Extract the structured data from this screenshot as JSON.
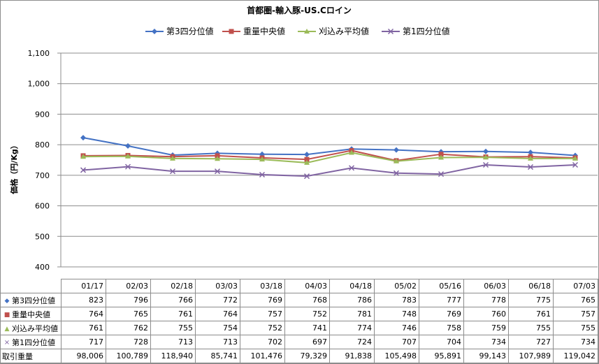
{
  "chart_data": {
    "type": "line",
    "title": "首都圏-輸入豚-US.Cロイン",
    "ylabel": "価格（円/Kg）",
    "xlabel": "",
    "ylim": [
      400,
      1100
    ],
    "yticks": [
      "400",
      "500",
      "600",
      "700",
      "800",
      "900",
      "1,000",
      "1,100"
    ],
    "categories": [
      "01/17",
      "02/03",
      "02/18",
      "03/03",
      "03/18",
      "04/03",
      "04/18",
      "05/02",
      "05/16",
      "06/03",
      "06/18",
      "07/03"
    ],
    "grid": "horizontal",
    "legend": "top",
    "series": [
      {
        "name": "第3四分位値",
        "values": [
          823,
          796,
          766,
          772,
          769,
          768,
          786,
          783,
          777,
          778,
          775,
          765
        ],
        "color": "#4472c4",
        "marker": "diamond"
      },
      {
        "name": "重量中央値",
        "values": [
          764,
          765,
          761,
          764,
          757,
          752,
          781,
          748,
          769,
          760,
          761,
          757
        ],
        "color": "#c0504d",
        "marker": "square"
      },
      {
        "name": "刈込み平均値",
        "values": [
          761,
          762,
          755,
          754,
          752,
          741,
          774,
          746,
          758,
          759,
          755,
          755
        ],
        "color": "#9bbb59",
        "marker": "triangle"
      },
      {
        "name": "第1四分位値",
        "values": [
          717,
          728,
          713,
          713,
          702,
          697,
          724,
          707,
          704,
          734,
          727,
          734
        ],
        "color": "#8064a2",
        "marker": "cross"
      }
    ],
    "table": {
      "extra_row": {
        "name": "取引重量",
        "values": [
          "98,006",
          "100,789",
          "118,940",
          "85,741",
          "101,476",
          "79,329",
          "91,838",
          "105,498",
          "95,891",
          "99,143",
          "107,989",
          "119,042"
        ]
      }
    }
  }
}
